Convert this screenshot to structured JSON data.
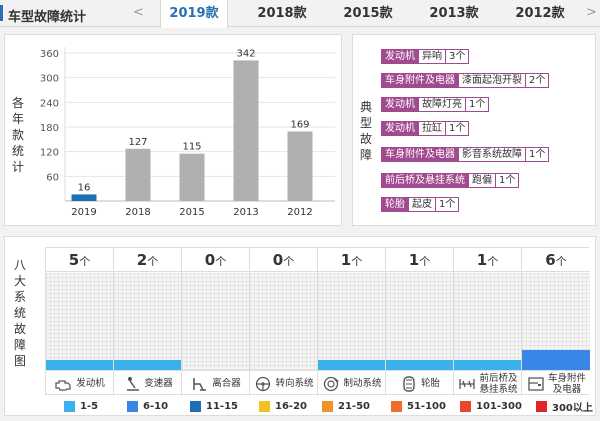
{
  "header": {
    "title": "车型故障统计",
    "prev_arrow": "<",
    "tabs": [
      {
        "label": "2019款",
        "active": true
      },
      {
        "label": "2018款",
        "active": false
      },
      {
        "label": "2015款",
        "active": false
      },
      {
        "label": "2013款",
        "active": false
      },
      {
        "label": "2012款",
        "active": false
      }
    ]
  },
  "left_panel": {
    "ylabel_chars": [
      "各",
      "年",
      "款",
      "统",
      "计"
    ]
  },
  "chart_data": {
    "type": "bar",
    "categories": [
      "2019",
      "2018",
      "2015",
      "2013",
      "2012"
    ],
    "values": [
      16,
      127,
      115,
      342,
      169
    ],
    "value_labels": [
      "16",
      "127",
      "115",
      "342",
      "169"
    ],
    "bar_colors": [
      "#1f6fb5",
      "#b0b0b0",
      "#b0b0b0",
      "#b0b0b0",
      "#b0b0b0"
    ],
    "yticks": [
      "60",
      "120",
      "180",
      "240",
      "300",
      "360"
    ],
    "ylim": [
      0,
      360
    ],
    "grid": true
  },
  "right_panel": {
    "label_chars": [
      "典",
      "型",
      "故",
      "障"
    ],
    "issues": [
      {
        "category": "发动机",
        "detail": "异响",
        "count": "3个"
      },
      {
        "category": "车身附件及电器",
        "detail": "漆面起泡开裂",
        "count": "2个"
      },
      {
        "category": "发动机",
        "detail": "故障灯亮",
        "count": "1个"
      },
      {
        "category": "发动机",
        "detail": "拉缸",
        "count": "1个"
      },
      {
        "category": "车身附件及电器",
        "detail": "影音系统故障",
        "count": "1个"
      },
      {
        "category": "前后桥及悬挂系统",
        "detail": "跑偏",
        "count": "1个"
      },
      {
        "category": "轮胎",
        "detail": "起皮",
        "count": "1个"
      }
    ],
    "accent": "#a14a8f"
  },
  "bottom_panel": {
    "label_chars": [
      "八",
      "大",
      "系",
      "统",
      "故",
      "障",
      "图"
    ],
    "unit": "个",
    "systems": [
      {
        "name": "发动机",
        "count": "5",
        "level": 1,
        "icon": "engine-icon"
      },
      {
        "name": "变速器",
        "count": "2",
        "level": 1,
        "icon": "gear-shifter-icon"
      },
      {
        "name": "离合器",
        "count": "0",
        "level": 0,
        "icon": "clutch-pedal-icon"
      },
      {
        "name": "转向系统",
        "count": "0",
        "level": 0,
        "icon": "steering-wheel-icon"
      },
      {
        "name": "制动系统",
        "count": "1",
        "level": 1,
        "icon": "brake-disc-icon"
      },
      {
        "name": "轮胎",
        "count": "1",
        "level": 1,
        "icon": "tire-icon"
      },
      {
        "name": "前后桥及悬挂系统",
        "name_line1": "前后桥及",
        "name_line2": "悬挂系统",
        "count": "1",
        "level": 1,
        "icon": "suspension-icon"
      },
      {
        "name": "车身附件及电器",
        "name_line1": "车身附件",
        "name_line2": "及电器",
        "count": "6",
        "level": 2,
        "icon": "car-door-icon"
      }
    ]
  },
  "legend": [
    {
      "label": "1-5",
      "color": "#3ab0ec"
    },
    {
      "label": "6-10",
      "color": "#3a86e6"
    },
    {
      "label": "11-15",
      "color": "#1f6fb5"
    },
    {
      "label": "16-20",
      "color": "#f3c222"
    },
    {
      "label": "21-50",
      "color": "#f0932b"
    },
    {
      "label": "51-100",
      "color": "#ee6d2b"
    },
    {
      "label": "101-300",
      "color": "#e8452c"
    },
    {
      "label": "300以上",
      "color": "#e1262a"
    }
  ]
}
